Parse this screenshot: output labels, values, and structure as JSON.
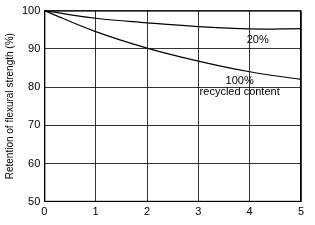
{
  "chart_data": {
    "type": "line",
    "y_label": "Retention of flexural strength (%)",
    "x": [
      0,
      1,
      2,
      3,
      4,
      5
    ],
    "series": [
      {
        "name": "20%",
        "color": "#000000",
        "values": [
          100,
          98,
          96.8,
          95.8,
          95.2,
          95.3
        ]
      },
      {
        "name": "100% recycled content",
        "color": "#000000",
        "values": [
          100,
          94.5,
          90.2,
          86.8,
          84,
          82
        ]
      }
    ],
    "xlim": [
      0,
      5
    ],
    "xticks": [
      0,
      1,
      2,
      3,
      4,
      5
    ],
    "ylim": [
      50,
      100
    ],
    "yticks": [
      50,
      60,
      70,
      80,
      90,
      100
    ],
    "grid": true
  }
}
